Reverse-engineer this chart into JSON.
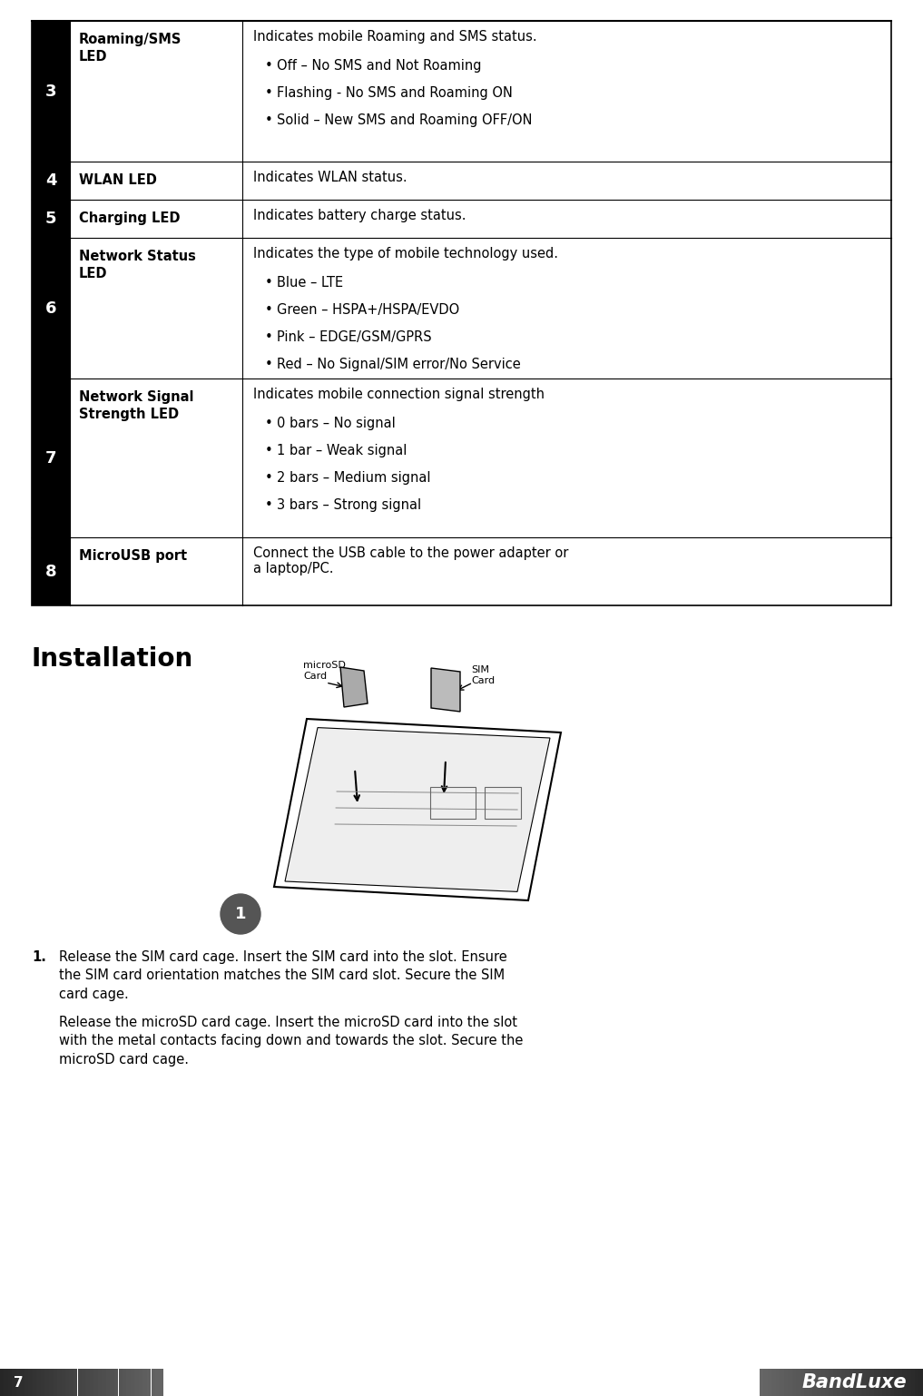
{
  "page_width": 10.17,
  "page_height": 15.38,
  "bg_color": "#ffffff",
  "table": {
    "rows": [
      {
        "num": "3",
        "label": "Roaming/SMS\nLED",
        "desc": "Indicates mobile Roaming and SMS status.",
        "bullets": [
          "Off – No SMS and Not Roaming",
          "Flashing - No SMS and Roaming ON",
          "Solid – New SMS and Roaming OFF/ON"
        ]
      },
      {
        "num": "4",
        "label": "WLAN LED",
        "desc": "Indicates WLAN status.",
        "bullets": []
      },
      {
        "num": "5",
        "label": "Charging LED",
        "desc": "Indicates battery charge status.",
        "bullets": []
      },
      {
        "num": "6",
        "label": "Network Status\nLED",
        "desc": "Indicates the type of mobile technology used.",
        "bullets": [
          "Blue – LTE",
          "Green – HSPA+/HSPA/EVDO",
          "Pink – EDGE/GSM/GPRS",
          "Red – No Signal/SIM error/No Service"
        ]
      },
      {
        "num": "7",
        "label": "Network Signal\nStrength LED",
        "desc": "Indicates mobile connection signal strength",
        "bullets": [
          "0 bars – No signal",
          "1 bar – Weak signal",
          "2 bars – Medium signal",
          "3 bars – Strong signal"
        ]
      },
      {
        "num": "8",
        "label": "MicroUSB port",
        "desc": "Connect the USB cable to the power adapter or\na laptop/PC.",
        "bullets": []
      }
    ]
  },
  "section_title": "Installation",
  "step1_text": "Release the SIM card cage. Insert the SIM card into the slot. Ensure the SIM card orientation matches the SIM card slot. Secure the SIM card cage.",
  "step2_text": "Release the microSD card cage. Insert the microSD card into the slot with the metal contacts facing down and towards the slot. Secure the microSD card cage.",
  "footer_page": "7",
  "footer_logo": "BandLuxe"
}
